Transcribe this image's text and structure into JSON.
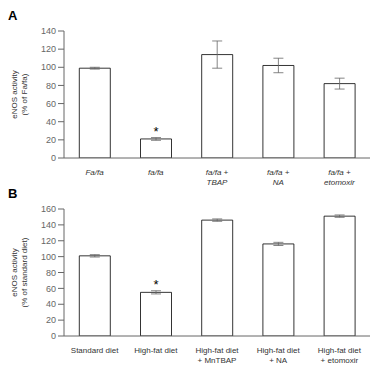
{
  "chart_data": [
    {
      "type": "bar",
      "title": "A",
      "ylabel": "eNOS activity\n(% of Fa/fa)",
      "categories": [
        "Fa/fa",
        "fa/fa",
        "fa/fa +\nTBAP",
        "fa/fa +\nNA",
        "fa/fa +\netomoxir"
      ],
      "values": [
        99,
        21,
        114,
        102,
        82
      ],
      "errors": [
        1,
        1.5,
        15,
        8,
        6
      ],
      "annotations": [
        {
          "category": "fa/fa",
          "text": "*"
        }
      ],
      "color": "#ffffff",
      "ylim": [
        0,
        140
      ],
      "yticks": [
        0,
        20,
        40,
        60,
        80,
        100,
        120,
        140
      ],
      "grid": false
    },
    {
      "type": "bar",
      "title": "B",
      "ylabel": "eNOS activity\n(% of standard diet)",
      "categories": [
        "Standard diet",
        "High-fat diet",
        "High-fat diet\n+ MnTBAP",
        "High-fat diet\n+ NA",
        "High-fat diet\n+ etomoxir"
      ],
      "values": [
        101,
        55,
        146,
        116,
        151
      ],
      "errors": [
        1.5,
        2,
        1.5,
        2,
        1.5
      ],
      "annotations": [
        {
          "category": "High-fat diet",
          "text": "*"
        }
      ],
      "color": "#ffffff",
      "ylim": [
        0,
        160
      ],
      "yticks": [
        0,
        20,
        40,
        60,
        80,
        100,
        120,
        140,
        160
      ],
      "grid": false
    }
  ]
}
